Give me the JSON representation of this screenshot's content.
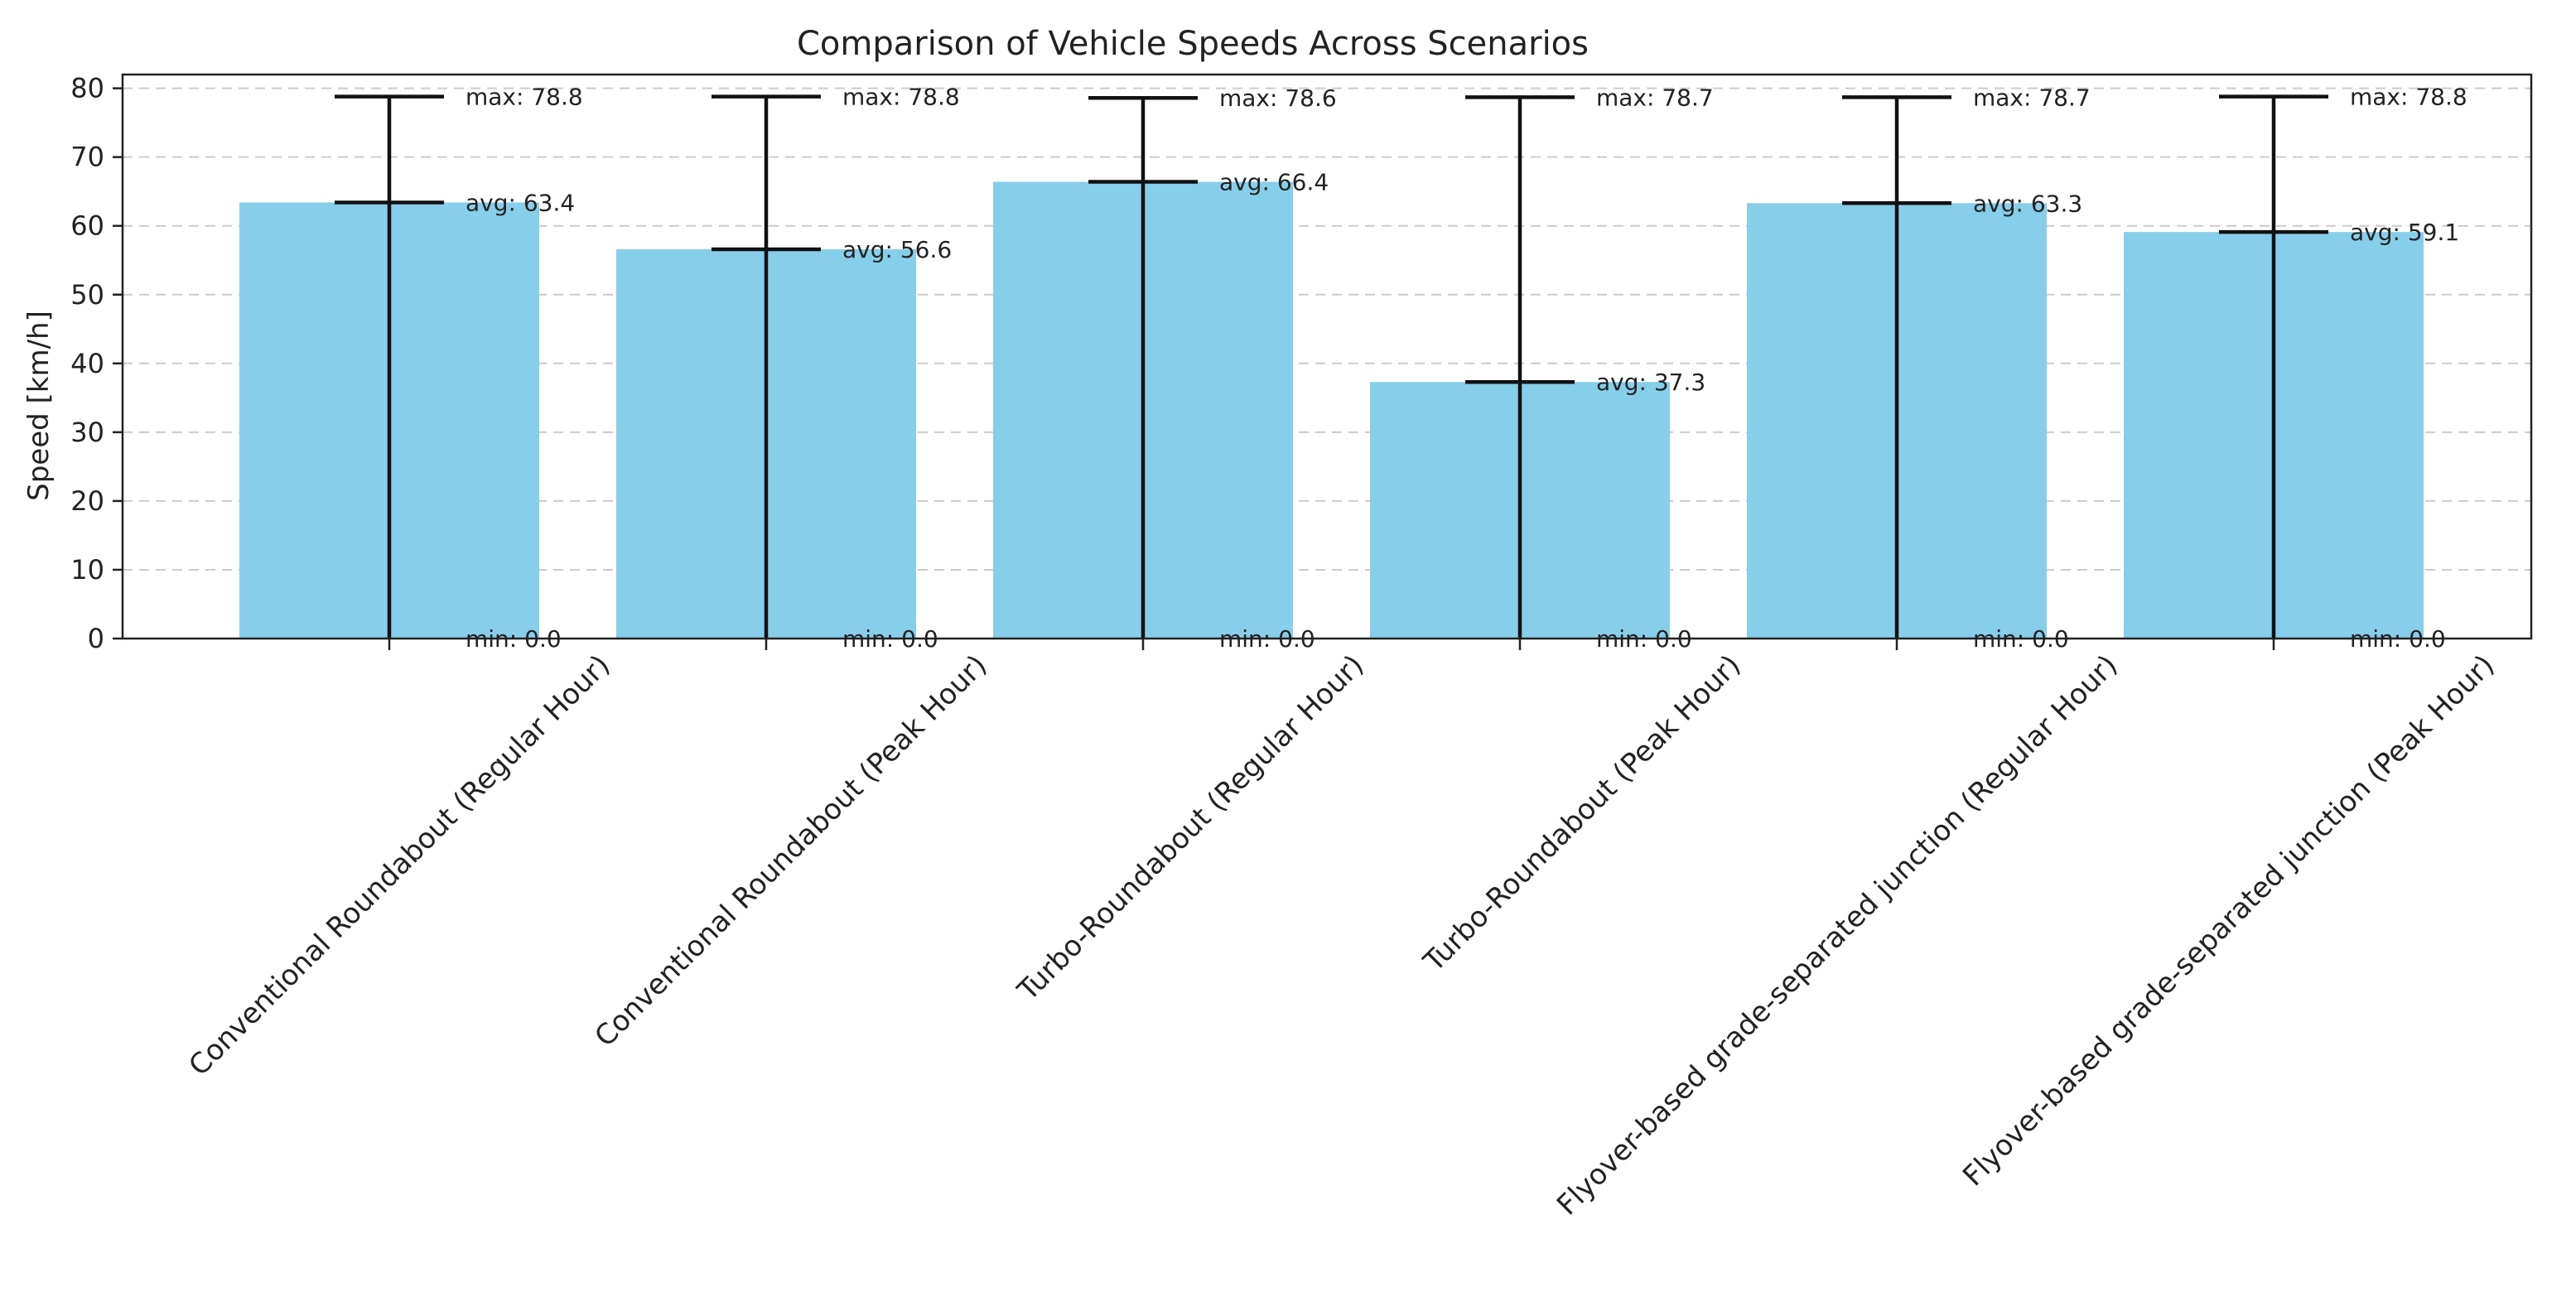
{
  "chart_data": {
    "type": "bar",
    "title": "Comparison of Vehicle Speeds Across Scenarios",
    "xlabel": "",
    "ylabel": "Speed [km/h]",
    "ylim": [
      0,
      82
    ],
    "yticks": [
      0,
      10,
      20,
      30,
      40,
      50,
      60,
      70,
      80
    ],
    "grid": true,
    "bar_color": "#87ceeb",
    "errorbar_color": "#111111",
    "categories": [
      "Conventional Roundabout (Regular Hour)",
      "Conventional Roundabout (Peak Hour)",
      "Turbo-Roundabout (Regular Hour)",
      "Turbo-Roundabout (Peak Hour)",
      "Flyover-based grade-separated junction (Regular Hour)",
      "Flyover-based grade-separated junction (Peak Hour)"
    ],
    "avg": [
      63.4,
      56.6,
      66.4,
      37.3,
      63.3,
      59.1
    ],
    "max": [
      78.8,
      78.8,
      78.6,
      78.7,
      78.7,
      78.8
    ],
    "min": [
      0.0,
      0.0,
      0.0,
      0.0,
      0.0,
      0.0
    ],
    "annotations": {
      "max": [
        "max: 78.8",
        "max: 78.8",
        "max: 78.6",
        "max: 78.7",
        "max: 78.7",
        "max: 78.8"
      ],
      "avg": [
        "avg: 63.4",
        "avg: 56.6",
        "avg: 66.4",
        "avg: 37.3",
        "avg: 63.3",
        "avg: 59.1"
      ],
      "min": [
        "min: 0.0",
        "min: 0.0",
        "min: 0.0",
        "min: 0.0",
        "min: 0.0",
        "min: 0.0"
      ]
    }
  }
}
